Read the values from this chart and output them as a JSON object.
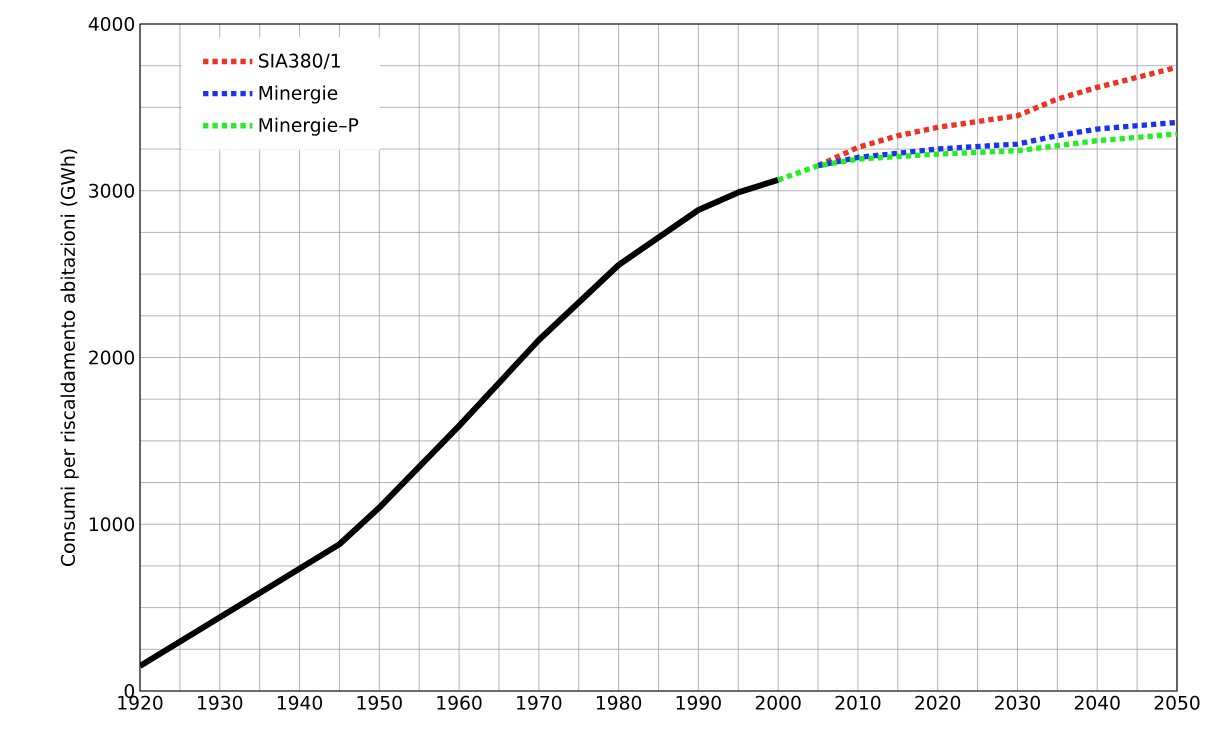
{
  "chart_data": {
    "type": "line",
    "ylabel": "Consumi per riscaldamento abitazioni (GWh)",
    "xlim": [
      1920,
      2050
    ],
    "ylim": [
      0,
      4000
    ],
    "xticks": [
      1920,
      {
        "value": 1925,
        "label": null
      },
      1930,
      {
        "value": 1935,
        "label": null
      },
      1940,
      {
        "value": 1945,
        "label": null
      },
      1950,
      {
        "value": 1955,
        "label": null
      },
      1960,
      {
        "value": 1965,
        "label": null
      },
      1970,
      {
        "value": 1975,
        "label": null
      },
      1980,
      {
        "value": 1985,
        "label": null
      },
      1990,
      {
        "value": 1995,
        "label": null
      },
      2000,
      {
        "value": 2005,
        "label": null
      },
      2010,
      {
        "value": 2015,
        "label": null
      },
      2020,
      {
        "value": 2025,
        "label": null
      },
      2030,
      {
        "value": 2035,
        "label": null
      },
      2040,
      {
        "value": 2045,
        "label": null
      },
      2050
    ],
    "yticks": [
      0,
      {
        "value": 250,
        "label": null
      },
      {
        "value": 500,
        "label": null
      },
      {
        "value": 750,
        "label": null
      },
      1000,
      {
        "value": 1250,
        "label": null
      },
      {
        "value": 1500,
        "label": null
      },
      {
        "value": 1750,
        "label": null
      },
      2000,
      {
        "value": 2250,
        "label": null
      },
      {
        "value": 2500,
        "label": null
      },
      {
        "value": 2750,
        "label": null
      },
      3000,
      {
        "value": 3250,
        "label": null
      },
      {
        "value": 3500,
        "label": null
      },
      {
        "value": 3750,
        "label": null
      },
      4000
    ],
    "grid": true,
    "legend": "top left",
    "marker": "none",
    "series": [
      {
        "color": "#000000",
        "line_style": "solid",
        "x": [
          1920,
          1945,
          1950,
          1960,
          1970,
          1980,
          1990,
          1995,
          2000
        ],
        "values": [
          150,
          880,
          1100,
          1590,
          2105,
          2555,
          2885,
          2990,
          3065
        ]
      },
      {
        "name": "SIA380/1",
        "color": "#ee3322",
        "line_style": "dotted",
        "x": [
          2005,
          2010,
          2015,
          2020,
          2030,
          2035,
          2040,
          2050
        ],
        "values": [
          3150,
          3260,
          3330,
          3380,
          3450,
          3550,
          3620,
          3740
        ]
      },
      {
        "name": "Minergie",
        "color": "#1a33ee",
        "line_style": "dotted",
        "x": [
          2005,
          2010,
          2020,
          2030,
          2035,
          2040,
          2050
        ],
        "values": [
          3150,
          3200,
          3250,
          3280,
          3330,
          3370,
          3410
        ]
      },
      {
        "name": "Minergie–P",
        "color": "#22ee22",
        "line_style": "dotted",
        "x": [
          2000,
          2005,
          2010,
          2020,
          2030,
          2040,
          2050
        ],
        "values": [
          3065,
          3150,
          3190,
          3220,
          3240,
          3300,
          3340
        ]
      }
    ]
  }
}
